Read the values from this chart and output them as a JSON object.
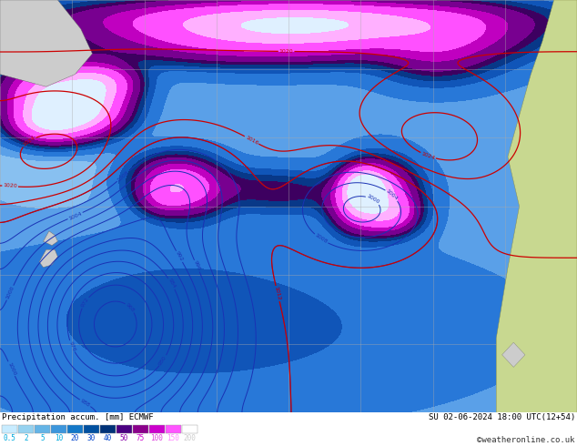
{
  "title_left": "Precipitation accum. [mm] ECMWF",
  "title_right": "SU 02-06-2024 18:00 UTC(12+54)",
  "copyright": "©weatheronline.co.uk",
  "colorbar_values": [
    "0.5",
    "2",
    "5",
    "10",
    "20",
    "30",
    "40",
    "50",
    "75",
    "100",
    "150",
    "200"
  ],
  "cb_colors": [
    "#c8ecff",
    "#96d2f0",
    "#64b4e6",
    "#3c96dc",
    "#1478c8",
    "#0050a0",
    "#003278",
    "#4b0082",
    "#8b008b",
    "#cc00cc",
    "#ff55ff",
    "#ffffff"
  ],
  "precip_levels": [
    0,
    0.5,
    2,
    5,
    10,
    20,
    30,
    40,
    50,
    75,
    100,
    150,
    200,
    300
  ],
  "precip_colors": [
    "#dff0ff",
    "#b8dcf8",
    "#88c0f0",
    "#5aa0e8",
    "#2878d8",
    "#1055b8",
    "#083888",
    "#3d0060",
    "#780090",
    "#c000c0",
    "#ff50ff",
    "#ffb0ff"
  ],
  "land_color": "#cccccc",
  "sa_land_color": "#c8d890",
  "ocean_bg": "#d0e8f8",
  "grid_color": "#aaaaaa",
  "blue_contour_color": "#1a32b4",
  "red_contour_color": "#cc0000",
  "bg_color": "#cccccc",
  "figsize": [
    6.34,
    4.9
  ],
  "dpi": 100
}
